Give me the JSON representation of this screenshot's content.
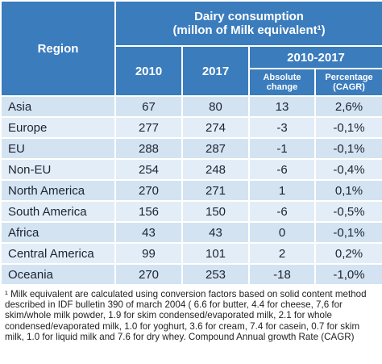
{
  "header": {
    "region": "Region",
    "title_line1": "Dairy consumption",
    "title_line2": "(millon of Milk equivalent¹)",
    "years": [
      "2010",
      "2017"
    ],
    "period": "2010-2017",
    "subcolumns": [
      "Absolute change",
      "Percentage (CAGR)"
    ]
  },
  "table": {
    "rows": [
      [
        "Asia",
        "67",
        "80",
        "13",
        "2,6%"
      ],
      [
        "Europe",
        "277",
        "274",
        "-3",
        "-0,1%"
      ],
      [
        "EU",
        "288",
        "287",
        "-1",
        "-0,1%"
      ],
      [
        "Non-EU",
        "254",
        "248",
        "-6",
        "-0,4%"
      ],
      [
        "North America",
        "270",
        "271",
        "1",
        "0,1%"
      ],
      [
        "South America",
        "156",
        "150",
        "-6",
        "-0,5%"
      ],
      [
        "Africa",
        "43",
        "43",
        "0",
        "-0,1%"
      ],
      [
        "Central America",
        "99",
        "101",
        "2",
        "0,2%"
      ],
      [
        "Oceania",
        "270",
        "253",
        "-18",
        "-1,0%"
      ]
    ]
  },
  "footnote": "¹ Milk equivalent are calculated using conversion factors based on solid content method described in IDF bulletin 390 of march 2004 ( 6.6 for butter, 4.4 for cheese, 7,6 for skim/whole milk powder, 1.9 for skim condensed/evaporated milk, 2.1 for whole condensed/evaporated milk, 1.0 for yoghurt, 3.6 for cream, 7.4 for casein, 0.7 for skim milk, 1.0 for liquid milk and 7.6 for dry whey. Compound Annual growth Rate (CAGR)"
}
